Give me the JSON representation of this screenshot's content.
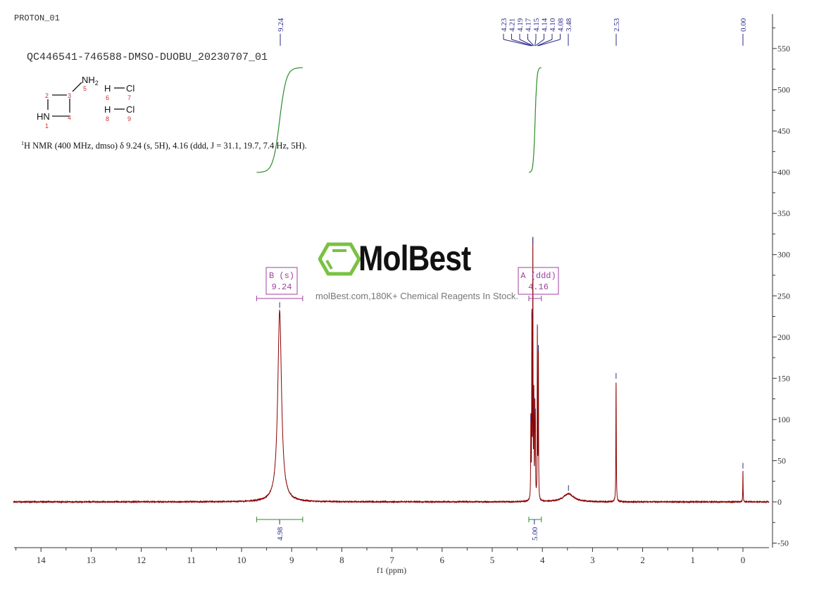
{
  "header": {
    "experiment": "PROTON_01",
    "sample_id": "QC446541-746588-DMSO-DUOBU_20230707_01",
    "nmr_summary_prefix": "1",
    "nmr_summary": "H NMR (400 MHz, dmso) δ 9.24 (s, 5H), 4.16 (ddd, J = 31.1, 19.7, 7.4 Hz, 5H)."
  },
  "structure": {
    "atoms": {
      "nh2": "NH",
      "nh2_sub": "2",
      "hn": "HN",
      "h1": "H",
      "cl1": "Cl",
      "h2": "H",
      "cl2": "Cl"
    },
    "numbers": [
      "1",
      "2",
      "3",
      "4",
      "5",
      "6",
      "7",
      "8",
      "9"
    ],
    "number_color": "#d03030"
  },
  "watermark": {
    "brand": "MolBest",
    "tagline": "molBest.com,180K+ Chemical Reagents In Stock.",
    "logo_color": "#7ac143"
  },
  "chart_data": {
    "type": "line",
    "xlabel": "f1  (ppm)",
    "ylabel": "",
    "xlim": [
      14.55,
      -0.52
    ],
    "ylim": [
      -55,
      592
    ],
    "x_reversed": true,
    "x_ticks": [
      "14",
      "13",
      "12",
      "11",
      "10",
      "9",
      "8",
      "7",
      "6",
      "5",
      "4",
      "3",
      "2",
      "1",
      "0"
    ],
    "y_ticks": [
      "550",
      "500",
      "450",
      "400",
      "350",
      "300",
      "250",
      "200",
      "150",
      "100",
      "50",
      "0",
      "-50"
    ],
    "y_axis_position": "right",
    "grid": false,
    "colors": {
      "spectrum": "#8b0000",
      "integral": "#2e8b2e",
      "peak_label": "#2b2b8c",
      "multiplet": "#a040a0",
      "axis": "#333333"
    },
    "peaks": [
      {
        "ppm": 9.24,
        "height": 232,
        "width": 0.045
      },
      {
        "ppm": 4.23,
        "height": 95,
        "width": 0.004
      },
      {
        "ppm": 4.21,
        "height": 220,
        "width": 0.004
      },
      {
        "ppm": 4.19,
        "height": 310,
        "width": 0.004
      },
      {
        "ppm": 4.17,
        "height": 120,
        "width": 0.004
      },
      {
        "ppm": 4.15,
        "height": 105,
        "width": 0.004
      },
      {
        "ppm": 4.14,
        "height": 90,
        "width": 0.004
      },
      {
        "ppm": 4.1,
        "height": 205,
        "width": 0.004
      },
      {
        "ppm": 4.08,
        "height": 180,
        "width": 0.004
      },
      {
        "ppm": 3.48,
        "height": 10,
        "width": 0.12
      },
      {
        "ppm": 2.53,
        "height": 146,
        "width": 0.005
      },
      {
        "ppm": 0.0,
        "height": 37,
        "width": 0.004
      }
    ],
    "peak_labels": [
      "9.24",
      "4.23",
      "4.21",
      "4.19",
      "4.17",
      "4.15",
      "4.14",
      "4.10",
      "4.08",
      "3.48",
      "2.53",
      "0.00"
    ],
    "multiplets": [
      {
        "label": "B (s)",
        "shift": "9.24",
        "range": [
          9.7,
          8.78
        ]
      },
      {
        "label": "A (ddd)",
        "shift": "4.16",
        "range": [
          4.27,
          4.02
        ]
      }
    ],
    "integrals": [
      {
        "value": "4.98",
        "range": [
          9.7,
          8.78
        ],
        "center": 9.24
      },
      {
        "value": "5.00",
        "range": [
          4.27,
          4.02
        ],
        "center": 4.16
      }
    ]
  }
}
